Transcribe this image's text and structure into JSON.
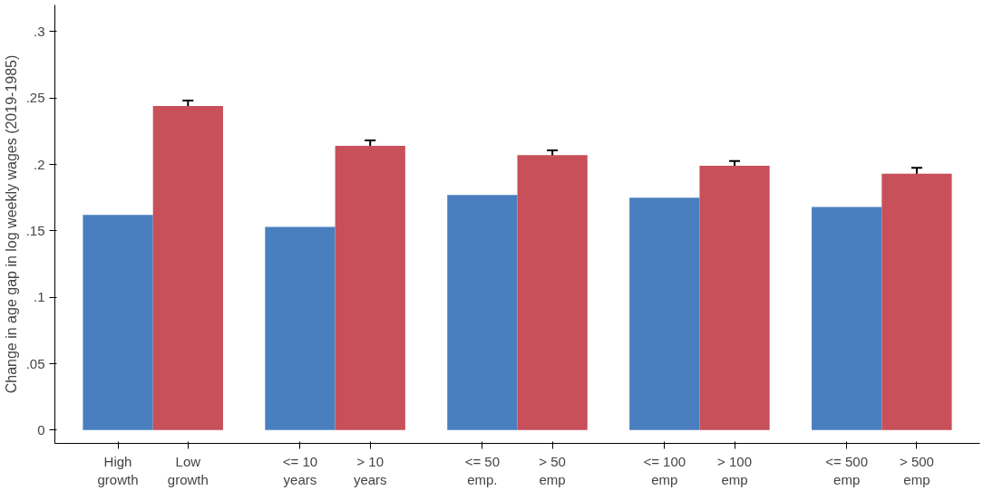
{
  "chart_data": {
    "type": "bar",
    "ylabel": "Change in age gap in log weekly wages (2019-1985)",
    "categories": [
      "High\ngrowth",
      "Low\ngrowth",
      "<= 10\nyears",
      "> 10\nyears",
      "<= 50\nemp.",
      "> 50\nemp",
      "<= 100\nemp",
      "> 100\nemp",
      "<= 500\nemp",
      "> 500\nemp"
    ],
    "values": [
      0.162,
      0.244,
      0.153,
      0.214,
      0.177,
      0.207,
      0.175,
      0.199,
      0.168,
      0.193
    ],
    "colors": [
      "#4a7fbf",
      "#c8505a",
      "#4a7fbf",
      "#c8505a",
      "#4a7fbf",
      "#c8505a",
      "#4a7fbf",
      "#c8505a",
      "#4a7fbf",
      "#c8505a"
    ],
    "errors": [
      null,
      0.004,
      null,
      0.004,
      null,
      0.0035,
      null,
      0.0035,
      null,
      0.0045
    ],
    "ylim": [
      -0.01,
      0.32
    ],
    "yticks": [
      0,
      {
        "value": 0.05,
        "label": ".05"
      },
      {
        "value": 0.1,
        "label": ".1"
      },
      {
        "value": 0.15,
        "label": ".15"
      },
      {
        "value": 0.2,
        "label": ".2"
      },
      {
        "value": 0.25,
        "label": ".25"
      },
      {
        "value": 0.3,
        "label": ".3"
      }
    ],
    "grid": false
  }
}
